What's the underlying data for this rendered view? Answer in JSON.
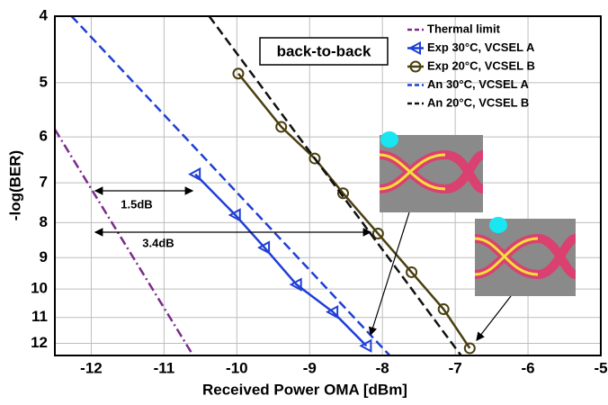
{
  "chart_data": {
    "type": "line",
    "xlabel": "Received Power OMA [dBm]",
    "ylabel": "-log(BER)",
    "xlim": [
      -12.5,
      -5
    ],
    "xticks": [
      -12,
      -11,
      -10,
      -9,
      -8,
      -7,
      -6,
      -5
    ],
    "ylim": [
      4,
      12.5
    ],
    "yticks": [
      4,
      5,
      6,
      7,
      8,
      9,
      10,
      11,
      12
    ],
    "yscale": "log",
    "y_inverted": true,
    "grid": true,
    "legend": "upper right",
    "series": [
      {
        "name": "Thermal limit",
        "color": "#7b2a8c",
        "linestyle": "dashdot",
        "marker": null,
        "x": [
          -12.5,
          -10.6
        ],
        "values": [
          5.85,
          12.5
        ]
      },
      {
        "name": "Exp 30°C, VCSEL A",
        "color": "#1f3fd6",
        "linestyle": "solid",
        "marker": "triangle-left",
        "x": [
          -10.57,
          -10.02,
          -9.62,
          -9.18,
          -8.68,
          -8.22
        ],
        "values": [
          6.8,
          7.8,
          8.7,
          9.85,
          10.8,
          12.1
        ]
      },
      {
        "name": "Exp 20°C, VCSEL B",
        "color": "#4a3f10",
        "linestyle": "solid",
        "marker": "circle",
        "x": [
          -9.98,
          -9.39,
          -8.93,
          -8.54,
          -8.06,
          -7.6,
          -7.16,
          -6.8
        ],
        "values": [
          4.85,
          5.8,
          6.45,
          7.25,
          8.3,
          9.45,
          10.7,
          12.2
        ]
      },
      {
        "name": "An 30°C, VCSEL A",
        "color": "#1f3fd6",
        "linestyle": "dashed",
        "marker": null,
        "x": [
          -12.27,
          -7.9
        ],
        "values": [
          4,
          12.5
        ]
      },
      {
        "name": "An 20°C, VCSEL B",
        "color": "#111111",
        "linestyle": "dashed",
        "marker": null,
        "x": [
          -10.38,
          -6.92
        ],
        "values": [
          4,
          12.5
        ]
      }
    ],
    "annotations": [
      "back-to-back",
      "1.5dB",
      "3.4dB"
    ]
  }
}
